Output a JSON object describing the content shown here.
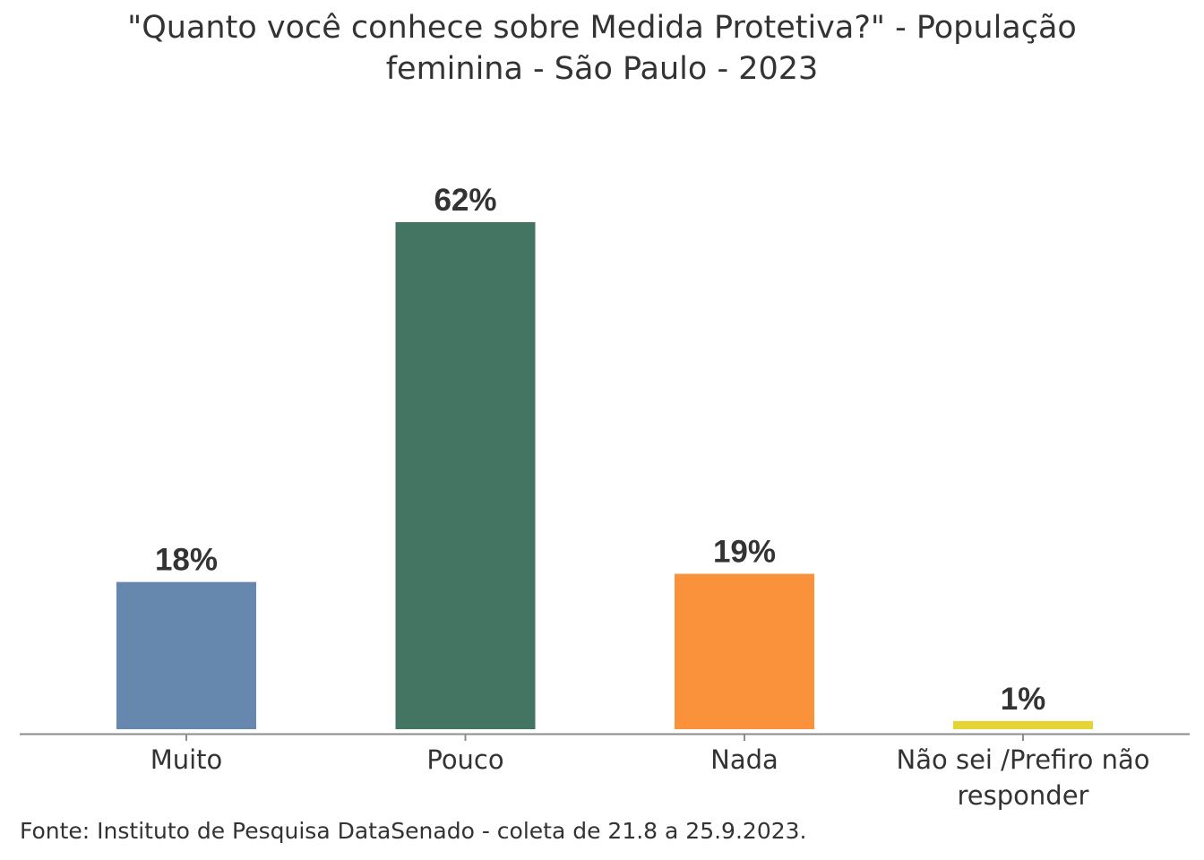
{
  "chart_data": {
    "type": "bar",
    "title_line1": "\"Quanto você conhece sobre Medida Protetiva?\" - População",
    "title_line2": "feminina - São Paulo - 2023",
    "categories": [
      "Muito",
      "Pouco",
      "Nada",
      "Não sei /Prefiro não responder"
    ],
    "category_lines": [
      [
        "Muito"
      ],
      [
        "Pouco"
      ],
      [
        "Nada"
      ],
      [
        "Não sei /Prefiro não",
        "responder"
      ]
    ],
    "values": [
      18,
      62,
      19,
      1
    ],
    "labels": [
      "18%",
      "62%",
      "19%",
      "1%"
    ],
    "colors": [
      "#6688AF",
      "#447462",
      "#FA913B",
      "#E5D435"
    ],
    "xlabel": "",
    "ylabel": "",
    "ylim": [
      0,
      62
    ],
    "grid": false,
    "legend": "none"
  },
  "source": "Fonte: Instituto de Pesquisa DataSenado - coleta de 21.8 a 25.9.2023."
}
